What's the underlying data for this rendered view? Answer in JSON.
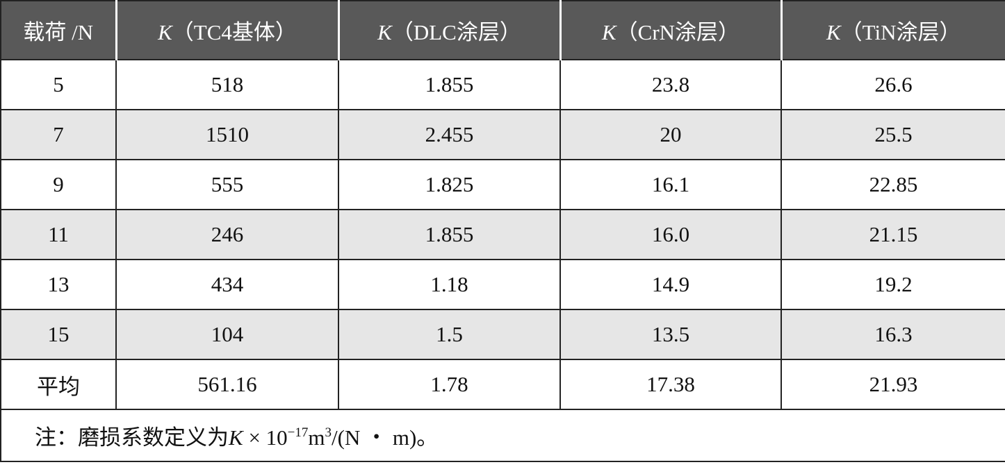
{
  "table": {
    "header": [
      {
        "label": "载荷 /N"
      },
      {
        "symbol": "K",
        "label": "（TC4基体）"
      },
      {
        "symbol": "K",
        "label": "（DLC涂层）"
      },
      {
        "symbol": "K",
        "label": "（CrN涂层）"
      },
      {
        "symbol": "K",
        "label": "（TiN涂层）"
      }
    ],
    "rows": [
      [
        "5",
        "518",
        "1.855",
        "23.8",
        "26.6"
      ],
      [
        "7",
        "1510",
        "2.455",
        "20",
        "25.5"
      ],
      [
        "9",
        "555",
        "1.825",
        "16.1",
        "22.85"
      ],
      [
        "11",
        "246",
        "1.855",
        "16.0",
        "21.15"
      ],
      [
        "13",
        "434",
        "1.18",
        "14.9",
        "19.2"
      ],
      [
        "15",
        "104",
        "1.5",
        "13.5",
        "16.3"
      ],
      [
        "平均",
        "561.16",
        "1.78",
        "17.38",
        "21.93"
      ]
    ],
    "note": {
      "prefix": "注：磨损系数定义为",
      "symbol": "K",
      "operator": " × ",
      "base": "10",
      "exponent": "−17",
      "unit": "m",
      "unit_exponent": "3",
      "suffix": "/(N ・ m)。"
    }
  }
}
